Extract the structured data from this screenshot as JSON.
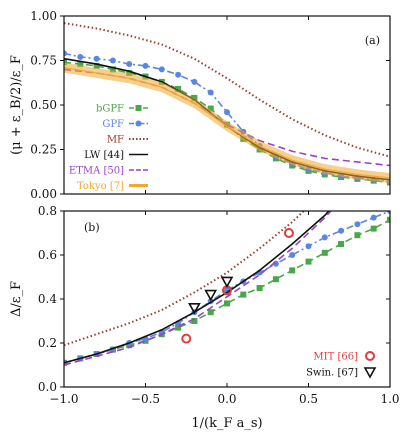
{
  "chart_data": [
    {
      "type": "line",
      "panel_label": "(a)",
      "ylabel": "(μ + ε_B/2)/ε_F",
      "xlabel": "",
      "xlim": [
        -1.0,
        1.0
      ],
      "ylim": [
        0.0,
        1.0
      ],
      "xticks": [
        "−1.0",
        "−0.5",
        "0.0",
        "0.5",
        "1.0"
      ],
      "yticks": [
        "0.00",
        "0.25",
        "0.50",
        "0.75",
        "1.00"
      ],
      "legend_placement": "left",
      "grid": false,
      "series": [
        {
          "name": "bGPF",
          "color": "#4aa64a",
          "style": "dashed",
          "marker": "square",
          "x": [
            -1.0,
            -0.9,
            -0.8,
            -0.7,
            -0.6,
            -0.5,
            -0.4,
            -0.3,
            -0.2,
            -0.1,
            0.0,
            0.1,
            0.2,
            0.3,
            0.4,
            0.5,
            0.6,
            0.7,
            0.8,
            0.9,
            1.0
          ],
          "y": [
            0.74,
            0.73,
            0.72,
            0.7,
            0.68,
            0.66,
            0.63,
            0.59,
            0.54,
            0.48,
            0.39,
            0.31,
            0.25,
            0.2,
            0.16,
            0.13,
            0.11,
            0.095,
            0.085,
            0.075,
            0.065
          ]
        },
        {
          "name": "GPF",
          "color": "#5b86e0",
          "style": "dashdot",
          "marker": "circle",
          "x": [
            -1.0,
            -0.9,
            -0.8,
            -0.7,
            -0.6,
            -0.5,
            -0.4,
            -0.3,
            -0.2,
            -0.1,
            0.0,
            0.1,
            0.2,
            0.3,
            0.4,
            0.5,
            0.6,
            0.7,
            0.8,
            0.9,
            1.0
          ],
          "y": [
            0.79,
            0.77,
            0.76,
            0.75,
            0.73,
            0.72,
            0.7,
            0.67,
            0.63,
            0.57,
            0.46,
            0.35,
            0.27,
            0.21,
            0.17,
            0.14,
            0.12,
            0.1,
            0.09,
            0.08,
            0.07
          ]
        },
        {
          "name": "MF",
          "color": "#9a3b2e",
          "style": "dotted",
          "marker": "none",
          "x": [
            -1.0,
            -0.8,
            -0.6,
            -0.4,
            -0.2,
            0.0,
            0.2,
            0.4,
            0.6,
            0.8,
            1.0
          ],
          "y": [
            0.96,
            0.93,
            0.89,
            0.84,
            0.76,
            0.65,
            0.53,
            0.42,
            0.33,
            0.26,
            0.21
          ]
        },
        {
          "name": "LW [44]",
          "color": "#111111",
          "style": "solid",
          "marker": "none",
          "x": [
            -1.0,
            -0.8,
            -0.6,
            -0.4,
            -0.2,
            0.0,
            0.2,
            0.4,
            0.6,
            0.8,
            1.0
          ],
          "y": [
            0.76,
            0.73,
            0.69,
            0.63,
            0.53,
            0.38,
            0.26,
            0.18,
            0.13,
            0.1,
            0.08
          ]
        },
        {
          "name": "ETMA [50]",
          "color": "#9b42c4",
          "style": "dashed",
          "marker": "none",
          "x": [
            -1.0,
            -0.8,
            -0.6,
            -0.4,
            -0.2,
            0.0,
            0.2,
            0.4,
            0.6,
            0.8,
            1.0
          ],
          "y": [
            0.7,
            0.68,
            0.65,
            0.6,
            0.51,
            0.39,
            0.3,
            0.24,
            0.2,
            0.18,
            0.16
          ]
        },
        {
          "name": "Tokyo [7]",
          "color": "#f0a830",
          "style": "band",
          "marker": "none",
          "x": [
            -1.0,
            -0.8,
            -0.6,
            -0.4,
            -0.2,
            0.0,
            0.2,
            0.4,
            0.6,
            0.8,
            1.0
          ],
          "y": [
            0.71,
            0.68,
            0.65,
            0.6,
            0.51,
            0.38,
            0.27,
            0.19,
            0.14,
            0.11,
            0.09
          ]
        }
      ]
    },
    {
      "type": "line",
      "panel_label": "(b)",
      "ylabel": "Δ/ε_F",
      "xlabel": "1/(k_F a_s)",
      "xlim": [
        -1.0,
        1.0
      ],
      "ylim": [
        0.0,
        0.8
      ],
      "xticks": [
        "−1.0",
        "−0.5",
        "0.0",
        "0.5",
        "1.0"
      ],
      "yticks": [
        "0.0",
        "0.2",
        "0.4",
        "0.6",
        "0.8"
      ],
      "legend_placement": "bottom-right",
      "grid": false,
      "series": [
        {
          "name": "bGPF",
          "color": "#4aa64a",
          "style": "dashed",
          "marker": "square",
          "in_legend": false,
          "x": [
            -1.0,
            -0.9,
            -0.8,
            -0.7,
            -0.6,
            -0.5,
            -0.4,
            -0.3,
            -0.2,
            -0.1,
            0.0,
            0.1,
            0.2,
            0.3,
            0.4,
            0.5,
            0.6,
            0.7,
            0.8,
            0.9,
            1.0
          ],
          "y": [
            0.11,
            0.13,
            0.15,
            0.17,
            0.19,
            0.21,
            0.24,
            0.27,
            0.3,
            0.34,
            0.38,
            0.42,
            0.45,
            0.49,
            0.53,
            0.57,
            0.61,
            0.65,
            0.69,
            0.72,
            0.76
          ]
        },
        {
          "name": "GPF",
          "color": "#5b86e0",
          "style": "dashdot",
          "marker": "circle",
          "in_legend": false,
          "x": [
            -1.0,
            -0.9,
            -0.8,
            -0.7,
            -0.6,
            -0.5,
            -0.4,
            -0.3,
            -0.2,
            -0.1,
            0.0,
            0.1,
            0.2,
            0.3,
            0.4,
            0.5,
            0.6,
            0.7,
            0.8,
            0.9,
            1.0
          ],
          "y": [
            0.11,
            0.13,
            0.15,
            0.17,
            0.2,
            0.22,
            0.25,
            0.29,
            0.34,
            0.39,
            0.44,
            0.48,
            0.52,
            0.56,
            0.6,
            0.64,
            0.68,
            0.71,
            0.74,
            0.77,
            0.8
          ]
        },
        {
          "name": "MF",
          "color": "#9a3b2e",
          "style": "dotted",
          "marker": "none",
          "in_legend": false,
          "x": [
            -1.0,
            -0.8,
            -0.6,
            -0.4,
            -0.2,
            0.0,
            0.2,
            0.4,
            0.5
          ],
          "y": [
            0.19,
            0.24,
            0.29,
            0.35,
            0.43,
            0.52,
            0.63,
            0.75,
            0.82
          ]
        },
        {
          "name": "LW [44]",
          "color": "#111111",
          "style": "solid",
          "marker": "none",
          "in_legend": false,
          "x": [
            -1.0,
            -0.8,
            -0.6,
            -0.4,
            -0.2,
            0.0,
            0.2,
            0.4,
            0.6,
            0.65
          ],
          "y": [
            0.11,
            0.15,
            0.2,
            0.26,
            0.34,
            0.43,
            0.53,
            0.65,
            0.78,
            0.82
          ]
        },
        {
          "name": "ETMA [50]",
          "color": "#9b42c4",
          "style": "dashed",
          "marker": "none",
          "in_legend": false,
          "x": [
            -1.0,
            -0.8,
            -0.6,
            -0.4,
            -0.2,
            0.0,
            0.2,
            0.4,
            0.6,
            0.65
          ],
          "y": [
            0.1,
            0.14,
            0.18,
            0.24,
            0.31,
            0.41,
            0.51,
            0.63,
            0.77,
            0.81
          ]
        },
        {
          "name": "MIT [66]",
          "color": "#e23b3b",
          "style": "none",
          "marker": "open-circle",
          "x": [
            -0.25,
            0.0,
            0.38
          ],
          "y": [
            0.22,
            0.44,
            0.7
          ]
        },
        {
          "name": "Swin. [67]",
          "color": "#111111",
          "style": "none",
          "marker": "open-triangle-down",
          "x": [
            -0.2,
            -0.1,
            0.0
          ],
          "y": [
            0.36,
            0.42,
            0.48
          ]
        }
      ]
    }
  ]
}
